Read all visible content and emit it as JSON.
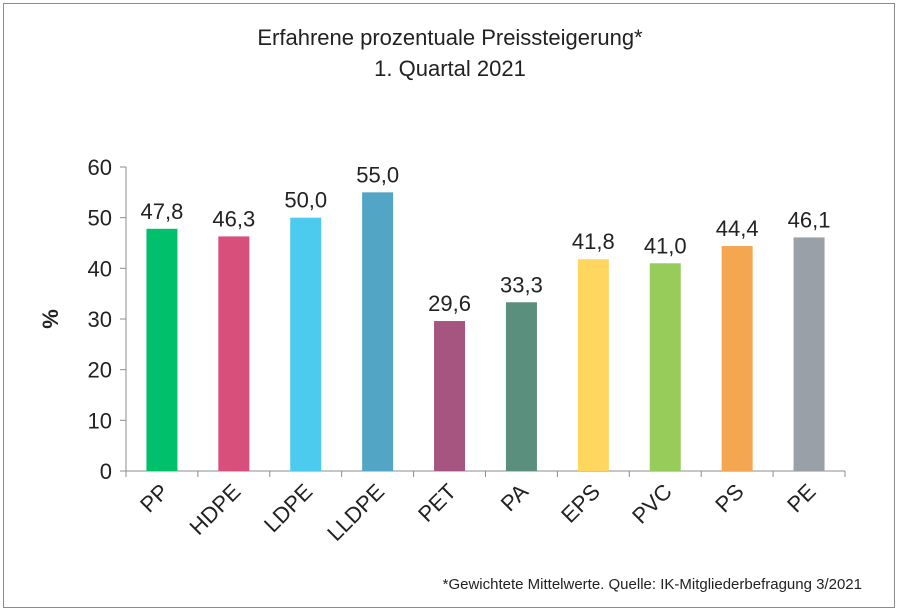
{
  "chart_data": {
    "type": "bar",
    "title": [
      "Erfahrene prozentuale Preissteigerung*",
      "1. Quartal 2021"
    ],
    "ylabel": "%",
    "xlabel": "",
    "ylim": [
      0,
      60
    ],
    "yticks": [
      0,
      10,
      20,
      30,
      40,
      50,
      60
    ],
    "categories": [
      "PP",
      "HDPE",
      "LDPE",
      "LLDPE",
      "PET",
      "PA",
      "EPS",
      "PVC",
      "PS",
      "PE"
    ],
    "values": [
      47.8,
      46.3,
      50.0,
      55.0,
      29.6,
      33.3,
      41.8,
      41.0,
      44.4,
      46.1
    ],
    "value_labels": [
      "47,8",
      "46,3",
      "50,0",
      "55,0",
      "29,6",
      "33,3",
      "41,8",
      "41,0",
      "44,4",
      "46,1"
    ],
    "colors": [
      "#00c06b",
      "#d94f7c",
      "#4ccbef",
      "#52a5c5",
      "#a65580",
      "#5b8f7d",
      "#ffd75f",
      "#98cc5a",
      "#f4a650",
      "#9aa0a7"
    ],
    "grid": false,
    "legend": "none"
  },
  "footnote": "*Gewichtete Mittelwerte. Quelle: IK-Mitgliederbefragung 3/2021"
}
